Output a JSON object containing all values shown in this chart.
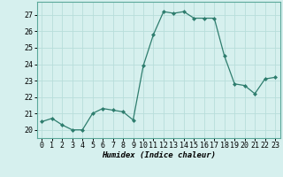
{
  "x": [
    0,
    1,
    2,
    3,
    4,
    5,
    6,
    7,
    8,
    9,
    10,
    11,
    12,
    13,
    14,
    15,
    16,
    17,
    18,
    19,
    20,
    21,
    22,
    23
  ],
  "y": [
    20.5,
    20.7,
    20.3,
    20.0,
    20.0,
    21.0,
    21.3,
    21.2,
    21.1,
    20.6,
    23.9,
    25.8,
    27.2,
    27.1,
    27.2,
    26.8,
    26.8,
    26.8,
    24.5,
    22.8,
    22.7,
    22.2,
    23.1,
    23.2
  ],
  "line_color": "#2E7D6E",
  "marker": "D",
  "marker_size": 2.0,
  "bg_color": "#D6F0EE",
  "grid_color": "#B8DEDA",
  "xlabel": "Humidex (Indice chaleur)",
  "ylim": [
    19.5,
    27.8
  ],
  "xlim": [
    -0.5,
    23.5
  ],
  "yticks": [
    20,
    21,
    22,
    23,
    24,
    25,
    26,
    27
  ],
  "xticks": [
    0,
    1,
    2,
    3,
    4,
    5,
    6,
    7,
    8,
    9,
    10,
    11,
    12,
    13,
    14,
    15,
    16,
    17,
    18,
    19,
    20,
    21,
    22,
    23
  ],
  "label_fontsize": 6.5,
  "tick_fontsize": 6.0
}
